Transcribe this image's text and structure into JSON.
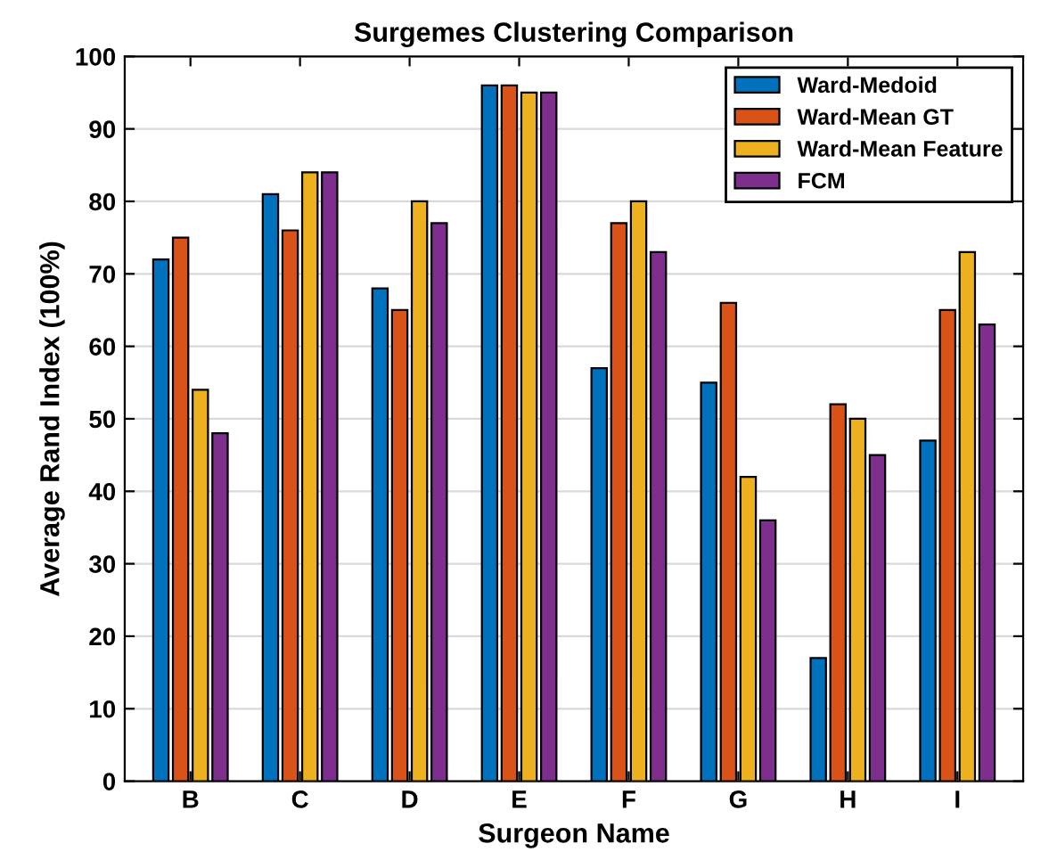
{
  "chart_data": {
    "type": "bar",
    "title": "Surgemes Clustering Comparison",
    "xlabel": "Surgeon Name",
    "ylabel": "Average Rand Index (100%)",
    "categories": [
      "B",
      "C",
      "D",
      "E",
      "F",
      "G",
      "H",
      "I"
    ],
    "series": [
      {
        "name": "Ward-Medoid",
        "color": "#0072bd",
        "values": [
          72,
          81,
          68,
          96,
          57,
          55,
          17,
          47
        ]
      },
      {
        "name": "Ward-Mean GT",
        "color": "#d95319",
        "values": [
          75,
          76,
          65,
          96,
          77,
          66,
          52,
          65
        ]
      },
      {
        "name": "Ward-Mean Feature",
        "color": "#edb120",
        "values": [
          54,
          84,
          80,
          95,
          80,
          42,
          50,
          73
        ]
      },
      {
        "name": "FCM",
        "color": "#7e2f8e",
        "values": [
          48,
          84,
          77,
          95,
          73,
          36,
          45,
          63
        ]
      }
    ],
    "ylim": [
      0,
      100
    ],
    "yticks": [
      0,
      10,
      20,
      30,
      40,
      50,
      60,
      70,
      80,
      90,
      100
    ],
    "grid": "y",
    "legend": "top right"
  }
}
